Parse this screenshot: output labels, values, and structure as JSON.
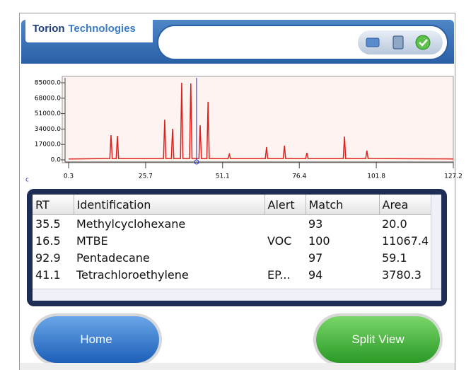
{
  "header": {
    "brand_bold": "Torion",
    "brand_light": "Technologies"
  },
  "chart_data": {
    "type": "line",
    "x": [
      0.3,
      13.9,
      14.3,
      14.7,
      16.0,
      16.4,
      16.8,
      31.6,
      32.0,
      32.4,
      34.2,
      34.6,
      35.0,
      37.2,
      37.6,
      38.0,
      40.2,
      40.6,
      41.0,
      43.3,
      43.7,
      44.1,
      45.9,
      46.3,
      46.7,
      52.9,
      53.3,
      53.7,
      65.2,
      65.6,
      66.0,
      71.1,
      71.5,
      71.9,
      78.5,
      78.9,
      79.3,
      90.9,
      91.3,
      91.7,
      98.3,
      98.7,
      99.1,
      127.2
    ],
    "series": [
      {
        "color": "#e0201c",
        "values": [
          1000,
          1500,
          27300,
          1500,
          1500,
          26500,
          1500,
          1500,
          44400,
          1500,
          1500,
          34300,
          1500,
          1500,
          85000,
          1500,
          1500,
          84200,
          1500,
          1500,
          38200,
          1500,
          1500,
          64000,
          1500,
          1500,
          6200,
          1500,
          1500,
          14000,
          1500,
          1500,
          15600,
          1500,
          1500,
          7800,
          1500,
          1500,
          25700,
          1500,
          1500,
          10100,
          1500,
          1000
        ]
      }
    ],
    "xlim": [
      0.3,
      127.2
    ],
    "xticks": [
      0.3,
      25.7,
      51.1,
      76.4,
      101.8,
      127.2
    ],
    "ylim": [
      0,
      85000
    ],
    "yticks": [
      {
        "value": 0,
        "label": "0.0"
      },
      {
        "value": 17000,
        "label": "17000.0"
      },
      {
        "value": 34000,
        "label": "34000.0"
      },
      {
        "value": 51000,
        "label": "51000.0"
      },
      {
        "value": 68000,
        "label": "68000.0"
      },
      {
        "value": 85000,
        "label": "85000.0"
      }
    ],
    "cursor_x": 42.5,
    "cursor_color": "#2030d0",
    "corner_label": "c"
  },
  "table": {
    "columns": [
      "RT",
      "Identification",
      "Alert",
      "Match",
      "Area"
    ],
    "rows": [
      [
        "35.5",
        "Methylcyclohexane",
        "",
        "93",
        "20.0"
      ],
      [
        "16.5",
        "MTBE",
        "VOC",
        "100",
        "11067.4"
      ],
      [
        "92.9",
        "Pentadecane",
        "",
        "97",
        "59.1"
      ],
      [
        "41.1",
        "Tetrachloroethylene",
        "EP...",
        "94",
        "3780.3"
      ]
    ]
  },
  "buttons": {
    "home": "Home",
    "split_view": "Split View"
  }
}
